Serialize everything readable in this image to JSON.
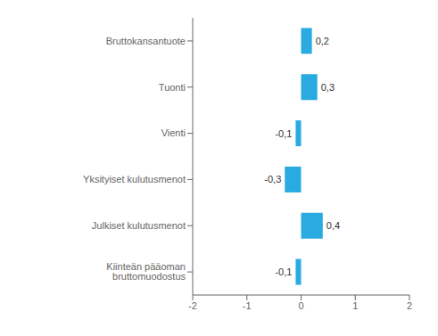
{
  "chart_data": {
    "type": "bar",
    "orientation": "horizontal",
    "categories": [
      "Kiinteän pääoman bruttomuodostus",
      "Julkiset kulutusmenot",
      "Yksityiset kulutusmenot",
      "Vienti",
      "Tuonti",
      "Bruttokansantuote"
    ],
    "values": [
      -0.1,
      0.4,
      -0.3,
      -0.1,
      0.3,
      0.2
    ],
    "value_labels": [
      "-0,1",
      "0,4",
      "-0,3",
      "-0,1",
      "0,3",
      "0,2"
    ],
    "data_labels": true,
    "color": "#29abe2",
    "xlim": [
      -2,
      2
    ],
    "xticks": [
      -2,
      -1,
      0,
      1,
      2
    ],
    "grid": false
  }
}
